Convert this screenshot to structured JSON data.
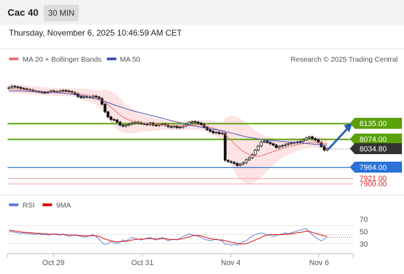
{
  "header": {
    "instrument": "Cac 40",
    "timeframe": "30 MIN",
    "datetime": "Thursday, November 6, 2025 10:46:59 AM CET"
  },
  "legend": {
    "ma20_label": "MA 20 + Bollinger Bands",
    "ma50_label": "MA 50",
    "copyright": "Research © 2025 Trading Central",
    "rsi_label": "RSI",
    "ma9_label": "9MA"
  },
  "colors": {
    "ma20": "#e57373",
    "ma50": "#3f51b5",
    "bollinger": "#fde3e3",
    "resistance": "#5aa10a",
    "current": "#333333",
    "support": "#2a72d8",
    "target_down": "#e57373",
    "rsi": "#5b7fd6",
    "ma9": "#dd0000",
    "up_candle": "#ffffff",
    "down_candle": "#111111",
    "arrow": "#2a5fb0"
  },
  "chart_data": [
    {
      "type": "candlestick",
      "ylim": [
        7880,
        8350
      ],
      "x_ticks": [
        "Oct 29",
        "Oct 31",
        "Nov 4",
        "Nov 6"
      ],
      "levels": [
        {
          "value": 8135.0,
          "label": "8135.00",
          "style": "resistance"
        },
        {
          "value": 8074.0,
          "label": "8074.00",
          "style": "resistance"
        },
        {
          "value": 8034.8,
          "label": "8034.80",
          "style": "current"
        },
        {
          "value": 7964.0,
          "label": "7964.00",
          "style": "support"
        },
        {
          "value": 7921.0,
          "label": "7921.00",
          "style": "target_down"
        },
        {
          "value": 7900.0,
          "label": "7900.00",
          "style": "target_down"
        }
      ],
      "close_series": [
        8275,
        8280,
        8278,
        8276,
        8272,
        8270,
        8268,
        8266,
        8262,
        8260,
        8258,
        8256,
        8255,
        8258,
        8262,
        8260,
        8258,
        8262,
        8264,
        8262,
        8260,
        8256,
        8250,
        8240,
        8236,
        8240,
        8238,
        8236,
        8242,
        8238,
        8232,
        8210,
        8180,
        8160,
        8150,
        8148,
        8140,
        8128,
        8124,
        8128,
        8132,
        8136,
        8140,
        8138,
        8134,
        8132,
        8130,
        8136,
        8128,
        8126,
        8130,
        8132,
        8128,
        8122,
        8120,
        8124,
        8118,
        8120,
        8125,
        8130,
        8138,
        8142,
        8140,
        8136,
        8130,
        8120,
        8110,
        8104,
        8098,
        8100,
        8095,
        8096,
        7990,
        7985,
        7982,
        7978,
        7970,
        7975,
        7980,
        7992,
        8000,
        8012,
        8030,
        8046,
        8062,
        8065,
        8060,
        8055,
        8050,
        8040,
        8045,
        8048,
        8052,
        8055,
        8058,
        8060,
        8062,
        8064,
        8070,
        8078,
        8082,
        8075,
        8070,
        8060,
        8044,
        8030,
        8035
      ],
      "ma20_series": [
        8272,
        8271,
        8270,
        8269,
        8268,
        8267,
        8266,
        8265,
        8264,
        8263,
        8262,
        8261,
        8260,
        8259,
        8259,
        8258,
        8258,
        8258,
        8258,
        8258,
        8257,
        8256,
        8255,
        8253,
        8250,
        8248,
        8246,
        8243,
        8240,
        8236,
        8232,
        8226,
        8218,
        8208,
        8198,
        8188,
        8178,
        8168,
        8160,
        8153,
        8148,
        8144,
        8141,
        8139,
        8137,
        8135,
        8134,
        8133,
        8132,
        8131,
        8130,
        8130,
        8129,
        8128,
        8127,
        8126,
        8125,
        8125,
        8125,
        8126,
        8127,
        8128,
        8129,
        8129,
        8128,
        8126,
        8123,
        8120,
        8116,
        8112,
        8108,
        8104,
        8092,
        8080,
        8068,
        8056,
        8044,
        8034,
        8025,
        8018,
        8012,
        8008,
        8006,
        8006,
        8008,
        8012,
        8016,
        8020,
        8024,
        8028,
        8032,
        8036,
        8040,
        8043,
        8046,
        8049,
        8052,
        8054,
        8056,
        8058,
        8060,
        8061,
        8061,
        8060,
        8058,
        8056,
        8055
      ],
      "ma50_series": [
        8262,
        8262,
        8262,
        8262,
        8262,
        8261,
        8261,
        8260,
        8260,
        8259,
        8259,
        8258,
        8258,
        8257,
        8257,
        8256,
        8255,
        8254,
        8253,
        8252,
        8251,
        8250,
        8248,
        8246,
        8244,
        8242,
        8240,
        8237,
        8234,
        8231,
        8228,
        8224,
        8220,
        8216,
        8212,
        8208,
        8204,
        8200,
        8196,
        8192,
        8188,
        8185,
        8182,
        8179,
        8176,
        8173,
        8170,
        8167,
        8164,
        8161,
        8158,
        8155,
        8152,
        8149,
        8146,
        8143,
        8140,
        8137,
        8134,
        8131,
        8128,
        8126,
        8124,
        8122,
        8120,
        8118,
        8116,
        8114,
        8112,
        8110,
        8108,
        8106,
        8103,
        8100,
        8097,
        8094,
        8091,
        8088,
        8085,
        8082,
        8080,
        8078,
        8076,
        8074,
        8072,
        8070,
        8069,
        8068,
        8067,
        8066,
        8065,
        8064,
        8063,
        8062,
        8061,
        8060,
        8059,
        8058,
        8057,
        8056,
        8055,
        8054,
        8053,
        8052,
        8051,
        8050,
        8049
      ],
      "band_width_series": [
        18,
        18,
        18,
        18,
        17,
        17,
        17,
        17,
        16,
        16,
        16,
        16,
        16,
        16,
        16,
        16,
        16,
        16,
        16,
        16,
        16,
        16,
        17,
        18,
        20,
        22,
        24,
        26,
        28,
        30,
        34,
        40,
        48,
        56,
        62,
        66,
        66,
        64,
        60,
        56,
        52,
        48,
        44,
        40,
        36,
        32,
        30,
        28,
        26,
        24,
        22,
        20,
        19,
        18,
        18,
        18,
        18,
        18,
        18,
        18,
        18,
        18,
        18,
        19,
        20,
        22,
        24,
        26,
        28,
        30,
        32,
        34,
        60,
        80,
        96,
        108,
        116,
        120,
        120,
        118,
        114,
        108,
        100,
        92,
        84,
        76,
        68,
        60,
        52,
        46,
        40,
        36,
        34,
        32,
        30,
        28,
        26,
        24,
        22,
        22,
        22,
        22,
        22,
        22,
        22,
        22,
        22
      ]
    },
    {
      "type": "line",
      "ylim": [
        0,
        100
      ],
      "y_ticks": [
        "70",
        "50",
        "30"
      ],
      "series": [
        {
          "name": "RSI",
          "values": [
            56,
            57,
            55,
            54,
            53,
            54,
            52,
            53,
            51,
            50,
            52,
            50,
            51,
            49,
            50,
            52,
            50,
            49,
            51,
            48,
            46,
            48,
            50,
            48,
            46,
            44,
            46,
            48,
            50,
            46,
            40,
            32,
            28,
            30,
            34,
            32,
            30,
            34,
            38,
            36,
            40,
            44,
            42,
            40,
            38,
            40,
            42,
            44,
            40,
            38,
            42,
            44,
            40,
            36,
            38,
            40,
            38,
            42,
            46,
            48,
            52,
            50,
            48,
            46,
            44,
            40,
            38,
            36,
            38,
            40,
            38,
            36,
            28,
            30,
            26,
            28,
            26,
            30,
            34,
            36,
            42,
            46,
            50,
            52,
            54,
            52,
            50,
            48,
            46,
            48,
            50,
            52,
            54,
            52,
            54,
            56,
            58,
            60,
            62,
            64,
            56,
            50,
            44,
            40,
            36,
            40,
            44
          ]
        },
        {
          "name": "9MA",
          "values": [
            60,
            59,
            58,
            57,
            56,
            55,
            55,
            54,
            54,
            53,
            53,
            52,
            52,
            51,
            51,
            51,
            51,
            50,
            50,
            50,
            49,
            49,
            49,
            48,
            48,
            47,
            47,
            47,
            48,
            47,
            46,
            43,
            40,
            38,
            36,
            35,
            34,
            34,
            35,
            35,
            36,
            38,
            39,
            40,
            40,
            40,
            41,
            41,
            41,
            40,
            40,
            41,
            41,
            40,
            39,
            39,
            39,
            40,
            41,
            43,
            45,
            47,
            48,
            48,
            47,
            45,
            43,
            41,
            40,
            39,
            38,
            38,
            36,
            35,
            33,
            32,
            30,
            29,
            29,
            30,
            32,
            35,
            38,
            41,
            44,
            47,
            49,
            50,
            50,
            50,
            50,
            50,
            51,
            51,
            52,
            53,
            54,
            55,
            56,
            58,
            57,
            55,
            53,
            51,
            49,
            47,
            46
          ]
        }
      ]
    }
  ]
}
